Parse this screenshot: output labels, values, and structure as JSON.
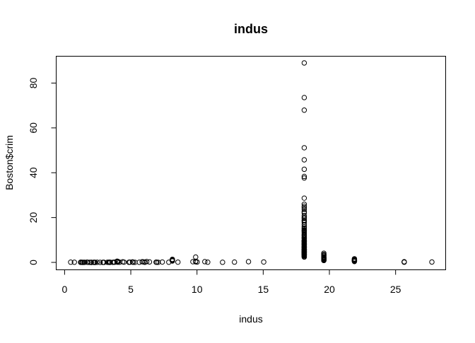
{
  "chart_data": {
    "type": "scatter",
    "title": "indus",
    "xlabel": "indus",
    "ylabel": "Boston$crim",
    "xlim": [
      0.46,
      27.74
    ],
    "ylim": [
      0.0063,
      88.9762
    ],
    "x_ticks": [
      0,
      5,
      10,
      15,
      20,
      25
    ],
    "y_ticks": [
      0,
      20,
      40,
      60,
      80
    ],
    "grid": false,
    "legend": "none",
    "points": [
      [
        0.46,
        0.1
      ],
      [
        0.74,
        0.08
      ],
      [
        1.21,
        0.05
      ],
      [
        1.22,
        0.02
      ],
      [
        1.25,
        0.05
      ],
      [
        1.32,
        0.02
      ],
      [
        1.38,
        0.01
      ],
      [
        1.47,
        0.02
      ],
      [
        1.52,
        0.03
      ],
      [
        1.69,
        0.09
      ],
      [
        1.76,
        0.03
      ],
      [
        1.89,
        0.02
      ],
      [
        2.01,
        0.01
      ],
      [
        2.02,
        0.01
      ],
      [
        2.18,
        0.04
      ],
      [
        2.24,
        0.01
      ],
      [
        2.25,
        0.03
      ],
      [
        2.31,
        0.01
      ],
      [
        2.46,
        0.06
      ],
      [
        2.68,
        0.02
      ],
      [
        2.89,
        0.02
      ],
      [
        2.95,
        0.03
      ],
      [
        2.97,
        0.02
      ],
      [
        3.24,
        0.05
      ],
      [
        3.33,
        0.04
      ],
      [
        3.37,
        0.06
      ],
      [
        3.41,
        0.01
      ],
      [
        3.44,
        0.06
      ],
      [
        3.64,
        0.04
      ],
      [
        3.75,
        0.12
      ],
      [
        3.78,
        0.07
      ],
      [
        3.97,
        0.55
      ],
      [
        3.97,
        0.37
      ],
      [
        4.0,
        0.09
      ],
      [
        4.05,
        0.32
      ],
      [
        4.15,
        0.08
      ],
      [
        4.39,
        0.25
      ],
      [
        4.49,
        0.11
      ],
      [
        4.86,
        0.05
      ],
      [
        4.93,
        0.1
      ],
      [
        5.13,
        0.2
      ],
      [
        5.19,
        0.06
      ],
      [
        5.32,
        0.03
      ],
      [
        5.64,
        0.06
      ],
      [
        5.86,
        0.29
      ],
      [
        5.96,
        0.2
      ],
      [
        6.06,
        0.05
      ],
      [
        6.07,
        0.12
      ],
      [
        6.2,
        0.37
      ],
      [
        6.41,
        0.22
      ],
      [
        6.91,
        0.09
      ],
      [
        6.96,
        0.05
      ],
      [
        7.07,
        0.03
      ],
      [
        7.38,
        0.16
      ],
      [
        7.87,
        0.08
      ],
      [
        8.14,
        1.23
      ],
      [
        8.14,
        0.84
      ],
      [
        8.14,
        0.63
      ],
      [
        8.14,
        1.38
      ],
      [
        8.14,
        0.95
      ],
      [
        8.56,
        0.11
      ],
      [
        9.69,
        0.31
      ],
      [
        9.9,
        0.5
      ],
      [
        9.9,
        2.37
      ],
      [
        9.9,
        0.26
      ],
      [
        10.01,
        0.17
      ],
      [
        10.59,
        0.33
      ],
      [
        10.81,
        0.1
      ],
      [
        11.93,
        0.06
      ],
      [
        12.83,
        0.14
      ],
      [
        13.89,
        0.32
      ],
      [
        15.04,
        0.19
      ],
      [
        18.1,
        88.98
      ],
      [
        18.1,
        73.53
      ],
      [
        18.1,
        67.92
      ],
      [
        18.1,
        51.14
      ],
      [
        18.1,
        45.75
      ],
      [
        18.1,
        41.53
      ],
      [
        18.1,
        38.35
      ],
      [
        18.1,
        37.66
      ],
      [
        18.1,
        28.66
      ],
      [
        18.1,
        25.95
      ],
      [
        18.1,
        25.05
      ],
      [
        18.1,
        24.39
      ],
      [
        18.1,
        23.65
      ],
      [
        18.1,
        22.6
      ],
      [
        18.1,
        22.05
      ],
      [
        18.1,
        20.85
      ],
      [
        18.1,
        20.08
      ],
      [
        18.1,
        19.61
      ],
      [
        18.1,
        18.81
      ],
      [
        18.1,
        18.5
      ],
      [
        18.1,
        17.87
      ],
      [
        18.1,
        16.81
      ],
      [
        18.1,
        15.86
      ],
      [
        18.1,
        15.29
      ],
      [
        18.1,
        15.02
      ],
      [
        18.1,
        14.44
      ],
      [
        18.1,
        14.33
      ],
      [
        18.1,
        14.05
      ],
      [
        18.1,
        13.68
      ],
      [
        18.1,
        13.36
      ],
      [
        18.1,
        12.8
      ],
      [
        18.1,
        12.25
      ],
      [
        18.1,
        12.05
      ],
      [
        18.1,
        11.58
      ],
      [
        18.1,
        11.1
      ],
      [
        18.1,
        10.83
      ],
      [
        18.1,
        10.67
      ],
      [
        18.1,
        10.06
      ],
      [
        18.1,
        9.92
      ],
      [
        18.1,
        9.72
      ],
      [
        18.1,
        9.39
      ],
      [
        18.1,
        9.33
      ],
      [
        18.1,
        9.19
      ],
      [
        18.1,
        8.98
      ],
      [
        18.1,
        8.72
      ],
      [
        18.1,
        8.49
      ],
      [
        18.1,
        8.27
      ],
      [
        18.1,
        8.15
      ],
      [
        18.1,
        8.05
      ],
      [
        18.1,
        7.84
      ],
      [
        18.1,
        7.67
      ],
      [
        18.1,
        7.4
      ],
      [
        18.1,
        7.05
      ],
      [
        18.1,
        7.02
      ],
      [
        18.1,
        6.8
      ],
      [
        18.1,
        6.72
      ],
      [
        18.1,
        6.53
      ],
      [
        18.1,
        6.44
      ],
      [
        18.1,
        6.29
      ],
      [
        18.1,
        5.87
      ],
      [
        18.1,
        5.82
      ],
      [
        18.1,
        5.73
      ],
      [
        18.1,
        5.69
      ],
      [
        18.1,
        5.58
      ],
      [
        18.1,
        5.44
      ],
      [
        18.1,
        5.29
      ],
      [
        18.1,
        5.09
      ],
      [
        18.1,
        4.87
      ],
      [
        18.1,
        4.81
      ],
      [
        18.1,
        4.75
      ],
      [
        18.1,
        4.66
      ],
      [
        18.1,
        4.55
      ],
      [
        18.1,
        4.42
      ],
      [
        18.1,
        4.3
      ],
      [
        18.1,
        4.22
      ],
      [
        18.1,
        4.1
      ],
      [
        18.1,
        3.85
      ],
      [
        18.1,
        3.77
      ],
      [
        18.1,
        3.69
      ],
      [
        18.1,
        3.57
      ],
      [
        18.1,
        3.47
      ],
      [
        18.1,
        3.32
      ],
      [
        18.1,
        3.16
      ],
      [
        18.1,
        2.92
      ],
      [
        18.1,
        2.82
      ],
      [
        18.1,
        2.45
      ],
      [
        18.1,
        2.38
      ],
      [
        19.58,
        4.1
      ],
      [
        19.58,
        3.53
      ],
      [
        19.58,
        3.32
      ],
      [
        19.58,
        2.92
      ],
      [
        19.58,
        2.45
      ],
      [
        19.58,
        2.15
      ],
      [
        19.58,
        2.01
      ],
      [
        19.58,
        1.8
      ],
      [
        19.58,
        1.63
      ],
      [
        19.58,
        1.42
      ],
      [
        19.58,
        1.27
      ],
      [
        19.58,
        1.13
      ],
      [
        19.58,
        0.96
      ],
      [
        19.58,
        0.85
      ],
      [
        21.89,
        1.61
      ],
      [
        21.89,
        1.35
      ],
      [
        21.89,
        1.1
      ],
      [
        21.89,
        0.88
      ],
      [
        21.89,
        0.73
      ],
      [
        21.89,
        0.55
      ],
      [
        21.89,
        0.4
      ],
      [
        25.65,
        0.3
      ],
      [
        25.65,
        0.2
      ],
      [
        25.65,
        0.1
      ],
      [
        27.74,
        0.17
      ]
    ]
  }
}
